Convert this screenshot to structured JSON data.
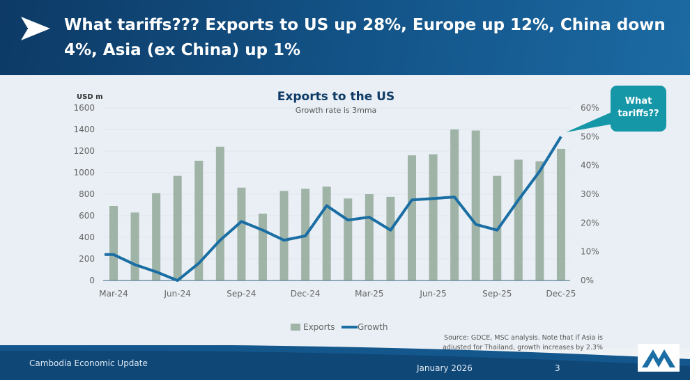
{
  "header": {
    "title": "What tariffs??? Exports to US up 28%, Europe up 12%, China down 4%, Asia (ex China) up 1%"
  },
  "callout": {
    "line1": "What",
    "line2": "tariffs??"
  },
  "source": "Source: GDCE, MSC analysis. Note that if  Asia is adjusted for Thailand, growth increases by 2.3%",
  "footer": {
    "left": "Cambodia Economic Update",
    "date": "January 2026",
    "page": "3"
  },
  "colors": {
    "bars": "#9fb3a7",
    "line": "#1a6ea3",
    "header": "#0d3a66",
    "accent": "#1597a8"
  },
  "chart_data": {
    "type": "bar+line",
    "title": "Exports to the US",
    "subtitle": "Growth rate is 3mma",
    "ylabel": "USD m",
    "ylim": [
      0,
      1600
    ],
    "y_ticks": [
      "0",
      "200",
      "400",
      "600",
      "800",
      "1000",
      "1200",
      "1400",
      "1600"
    ],
    "y2lim": [
      0,
      60
    ],
    "y2_ticks": [
      "0%",
      "10%",
      "20%",
      "30%",
      "40%",
      "50%",
      "60%"
    ],
    "categories": [
      "Mar-24",
      "Apr-24",
      "May-24",
      "Jun-24",
      "Jul-24",
      "Aug-24",
      "Sep-24",
      "Oct-24",
      "Nov-24",
      "Dec-24",
      "Jan-25",
      "Feb-25",
      "Mar-25",
      "Apr-25",
      "May-25",
      "Jun-25",
      "Jul-25",
      "Aug-25",
      "Sep-25",
      "Oct-25",
      "Nov-25",
      "Dec-25"
    ],
    "x_tick_labels": [
      "Mar-24",
      "Jun-24",
      "Sep-24",
      "Dec-24",
      "Mar-25",
      "Jun-25",
      "Sep-25",
      "Dec-25"
    ],
    "series": [
      {
        "name": "Exports",
        "type": "bar",
        "axis": "left",
        "values": [
          690,
          630,
          810,
          970,
          1110,
          1240,
          860,
          620,
          830,
          850,
          870,
          760,
          800,
          775,
          1160,
          1170,
          1400,
          1390,
          970,
          1120,
          1105,
          1220
        ]
      },
      {
        "name": "Growth",
        "type": "line",
        "axis": "right",
        "values": [
          9,
          5.5,
          3,
          0,
          6,
          14,
          20.5,
          17.5,
          14,
          15.5,
          26,
          21,
          22,
          17.5,
          28,
          28.5,
          29,
          19.5,
          17.5,
          28,
          38,
          50
        ]
      }
    ],
    "legend": [
      "Exports",
      "Growth"
    ],
    "legend_position": "bottom"
  }
}
